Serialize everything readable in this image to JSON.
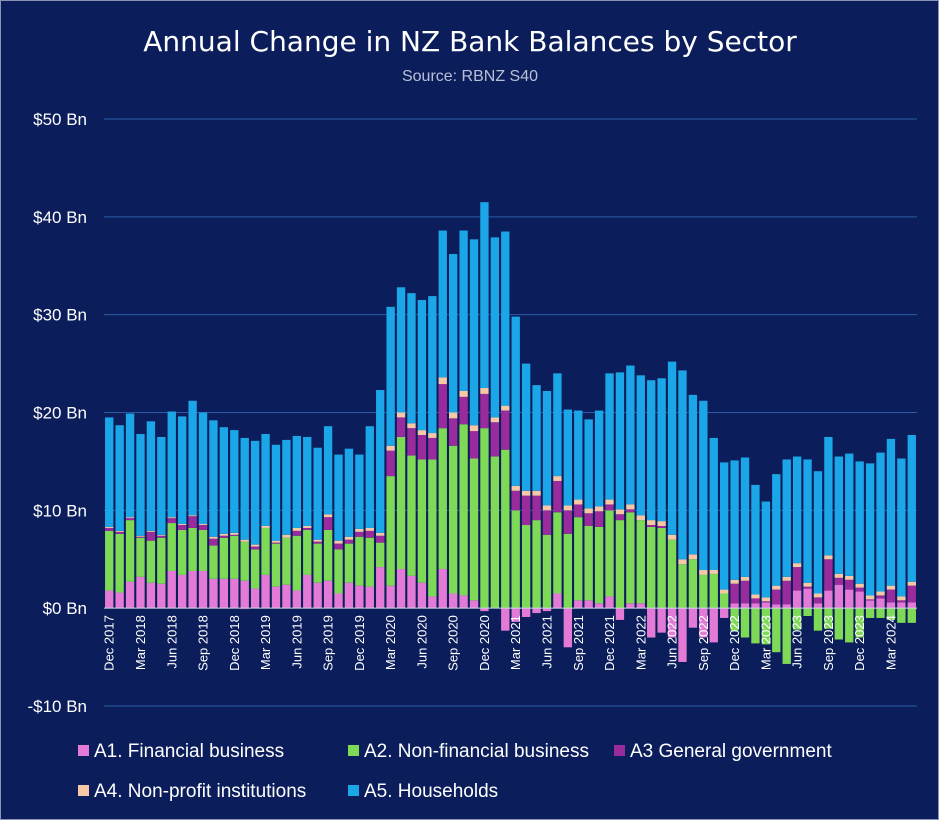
{
  "chart_data": {
    "type": "bar",
    "stacked": true,
    "title": "Annual Change in NZ Bank Balances by Sector",
    "subtitle": "Source: RBNZ S40",
    "ylim": [
      -10,
      50
    ],
    "yticks": [
      -10,
      0,
      10,
      20,
      30,
      40,
      50
    ],
    "ytick_labels": [
      "-$10 Bn",
      "$0 Bn",
      "$10 Bn",
      "$20 Bn",
      "$30 Bn",
      "$40 Bn",
      "$50 Bn"
    ],
    "grid": true,
    "legend_position": "bottom",
    "categories": [
      "Dec 2017",
      "Jan 2018",
      "Feb 2018",
      "Mar 2018",
      "Apr 2018",
      "May 2018",
      "Jun 2018",
      "Jul 2018",
      "Aug 2018",
      "Sep 2018",
      "Oct 2018",
      "Nov 2018",
      "Dec 2018",
      "Jan 2019",
      "Feb 2019",
      "Mar 2019",
      "Apr 2019",
      "May 2019",
      "Jun 2019",
      "Jul 2019",
      "Aug 2019",
      "Sep 2019",
      "Oct 2019",
      "Nov 2019",
      "Dec 2019",
      "Jan 2020",
      "Feb 2020",
      "Mar 2020",
      "Apr 2020",
      "May 2020",
      "Jun 2020",
      "Jul 2020",
      "Aug 2020",
      "Sep 2020",
      "Oct 2020",
      "Nov 2020",
      "Dec 2020",
      "Jan 2021",
      "Feb 2021",
      "Mar 2021",
      "Apr 2021",
      "May 2021",
      "Jun 2021",
      "Jul 2021",
      "Aug 2021",
      "Sep 2021",
      "Oct 2021",
      "Nov 2021",
      "Dec 2021",
      "Jan 2022",
      "Feb 2022",
      "Mar 2022",
      "Apr 2022",
      "May 2022",
      "Jun 2022",
      "Jul 2022",
      "Aug 2022",
      "Sep 2022",
      "Oct 2022",
      "Nov 2022",
      "Dec 2022",
      "Jan 2023",
      "Feb 2023",
      "Mar 2023",
      "Apr 2023",
      "May 2023",
      "Jun 2023",
      "Jul 2023",
      "Aug 2023",
      "Sep 2023",
      "Oct 2023",
      "Nov 2023",
      "Dec 2023",
      "Jan 2024",
      "Feb 2024",
      "Mar 2024",
      "Apr 2024",
      "May 2024"
    ],
    "xtick_labels": [
      "Dec 2017",
      "Mar 2018",
      "Jun 2018",
      "Sep 2018",
      "Dec 2018",
      "Mar 2019",
      "Jun 2019",
      "Sep 2019",
      "Dec 2019",
      "Mar 2020",
      "Jun 2020",
      "Sep 2020",
      "Dec 2020",
      "Mar 2021",
      "Jun 2021",
      "Sep 2021",
      "Dec 2021",
      "Mar 2022",
      "Jun 2022",
      "Sep 2022",
      "Dec 2022",
      "Mar 2023",
      "Jun 2023",
      "Sep 2023",
      "Dec 2023",
      "Mar 2024"
    ],
    "series": [
      {
        "name": "A1. Financial business",
        "color": "#e27ad6",
        "values": [
          1.8,
          1.6,
          2.7,
          3.2,
          2.6,
          2.5,
          3.8,
          3.4,
          3.8,
          3.8,
          3.0,
          3.0,
          3.0,
          2.8,
          2.0,
          3.4,
          2.2,
          2.4,
          1.8,
          3.4,
          2.6,
          2.8,
          1.5,
          2.6,
          2.3,
          2.2,
          4.2,
          2.3,
          4.0,
          3.3,
          2.6,
          1.2,
          4.0,
          1.5,
          1.3,
          0.8,
          -0.3,
          0.0,
          -2.3,
          -1.4,
          -0.9,
          -0.5,
          -0.3,
          1.5,
          -4.0,
          0.8,
          0.8,
          0.5,
          1.2,
          -1.2,
          0.5,
          0.5,
          -3.0,
          -2.5,
          -3.0,
          -5.5,
          -2.0,
          -3.0,
          -3.5,
          -1.0,
          0.5,
          0.5,
          0.5,
          0.6,
          0.4,
          0.4,
          1.8,
          2.0,
          0.5,
          1.8,
          2.4,
          1.9,
          1.7,
          0.8,
          1.0,
          0.6,
          0.6,
          0.6
        ]
      },
      {
        "name": "A2. Non-financial business",
        "color": "#7ed957",
        "values": [
          6.1,
          6.0,
          6.3,
          4.0,
          4.3,
          4.7,
          4.9,
          4.6,
          4.4,
          4.2,
          3.4,
          4.2,
          4.4,
          4.0,
          4.0,
          4.8,
          4.4,
          4.8,
          5.6,
          4.6,
          4.0,
          5.2,
          4.5,
          4.0,
          5.0,
          5.0,
          2.5,
          11.2,
          13.5,
          12.3,
          12.6,
          14.0,
          14.4,
          15.1,
          17.5,
          14.5,
          18.4,
          15.5,
          16.2,
          10.0,
          8.5,
          9.0,
          7.5,
          8.3,
          7.6,
          8.5,
          7.6,
          7.8,
          8.8,
          9.0,
          9.3,
          8.5,
          8.3,
          8.2,
          7.0,
          4.5,
          5.0,
          3.4,
          3.5,
          1.5,
          -2.3,
          -3.0,
          -3.6,
          -3.7,
          -4.5,
          -5.7,
          -2.2,
          -0.8,
          -2.3,
          -2.1,
          -3.2,
          -3.5,
          -3.0,
          -1.0,
          -1.0,
          -1.2,
          -1.5,
          -1.5
        ]
      },
      {
        "name": "A3 General government",
        "color": "#9a2b9c",
        "values": [
          0.3,
          0.2,
          0.2,
          0.1,
          0.9,
          0.2,
          0.5,
          0.5,
          1.2,
          0.5,
          0.7,
          0.2,
          0.1,
          -0.1,
          0.3,
          0.0,
          0.1,
          0.0,
          0.5,
          0.2,
          0.2,
          1.3,
          0.6,
          0.4,
          0.5,
          0.7,
          0.7,
          2.6,
          2.0,
          2.8,
          2.5,
          2.2,
          4.5,
          2.8,
          2.8,
          2.8,
          3.5,
          3.5,
          4.0,
          2.0,
          3.0,
          2.5,
          2.5,
          3.2,
          2.4,
          1.3,
          1.3,
          1.6,
          0.6,
          0.6,
          0.3,
          0.0,
          0.2,
          0.2,
          0.0,
          0.0,
          0.0,
          0.0,
          0.0,
          0.0,
          2.0,
          2.3,
          0.5,
          0.1,
          1.5,
          2.4,
          2.4,
          0.2,
          0.6,
          3.2,
          0.7,
          1.0,
          0.4,
          0.1,
          0.3,
          1.3,
          0.2,
          1.7
        ]
      },
      {
        "name": "A4. Non-profit institutions",
        "color": "#f7c8a6",
        "values": [
          0.1,
          0.1,
          0.1,
          0.1,
          0.1,
          0.1,
          0.1,
          0.1,
          0.1,
          0.1,
          0.2,
          0.2,
          0.2,
          0.2,
          0.2,
          0.2,
          0.2,
          0.3,
          0.3,
          0.2,
          0.2,
          0.3,
          0.3,
          0.3,
          0.3,
          0.3,
          0.3,
          0.5,
          0.5,
          0.5,
          0.5,
          0.5,
          0.7,
          0.6,
          0.6,
          0.6,
          0.6,
          0.5,
          0.5,
          0.5,
          0.5,
          0.5,
          0.5,
          0.5,
          0.5,
          0.5,
          0.5,
          0.5,
          0.5,
          0.5,
          0.5,
          0.5,
          0.5,
          0.5,
          0.5,
          0.5,
          0.5,
          0.5,
          0.4,
          0.4,
          0.4,
          0.4,
          0.4,
          0.4,
          0.4,
          0.4,
          0.4,
          0.4,
          0.4,
          0.4,
          0.4,
          0.4,
          0.4,
          0.4,
          0.4,
          0.4,
          0.4,
          0.4
        ]
      },
      {
        "name": "A5. Households",
        "color": "#1ba6e8",
        "values": [
          11.2,
          10.8,
          10.6,
          10.4,
          11.2,
          10.0,
          10.8,
          11.0,
          11.7,
          11.4,
          11.9,
          10.9,
          10.5,
          10.4,
          10.6,
          9.4,
          9.8,
          9.7,
          9.4,
          9.1,
          9.4,
          9.0,
          8.8,
          9.0,
          7.6,
          10.4,
          14.6,
          14.2,
          12.8,
          13.3,
          13.3,
          14.0,
          15.0,
          16.2,
          16.4,
          19.0,
          19.0,
          18.4,
          17.8,
          17.3,
          13.0,
          10.8,
          11.7,
          10.5,
          9.8,
          9.1,
          9.1,
          9.8,
          12.9,
          14.0,
          14.2,
          14.3,
          14.3,
          14.6,
          17.7,
          19.3,
          16.3,
          17.3,
          13.5,
          13.0,
          12.2,
          12.2,
          11.2,
          9.8,
          11.4,
          12.0,
          10.9,
          12.6,
          12.5,
          12.1,
          12.0,
          12.5,
          12.5,
          13.5,
          14.2,
          15.0,
          14.1,
          15.0
        ]
      }
    ]
  }
}
